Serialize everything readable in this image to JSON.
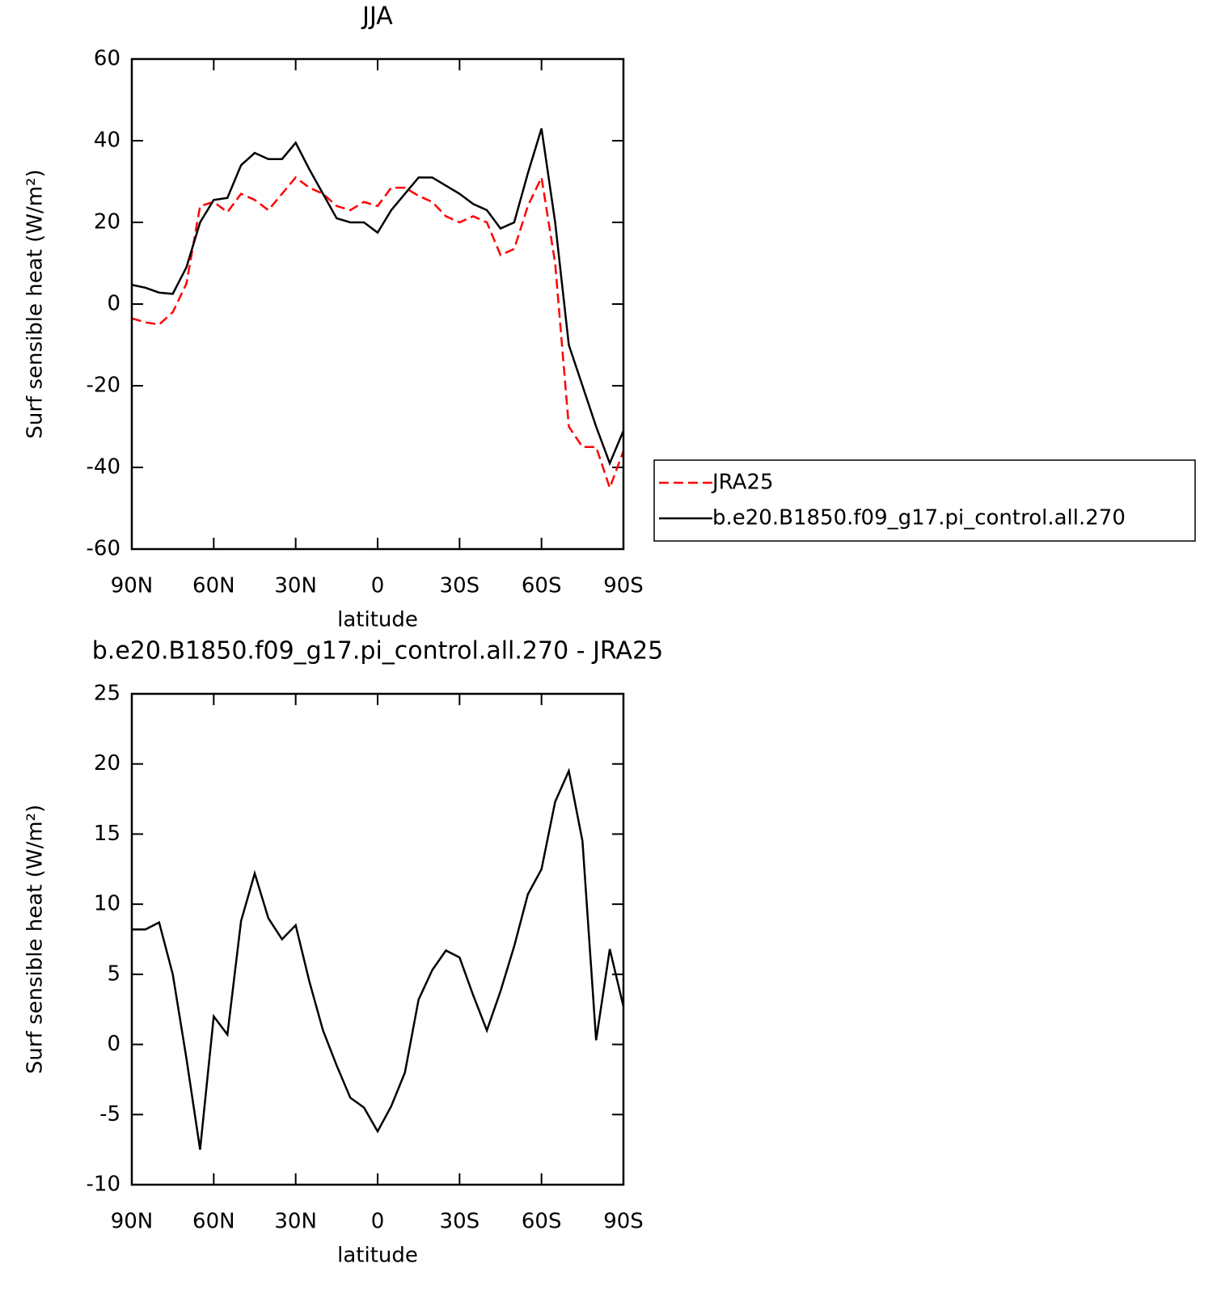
{
  "chart_data": [
    {
      "type": "line",
      "title": "JJA",
      "xlabel": "latitude",
      "ylabel": "Surf sensible heat (W/m²)",
      "x": [
        90,
        85,
        80,
        75,
        70,
        65,
        60,
        55,
        50,
        45,
        40,
        35,
        30,
        25,
        20,
        15,
        10,
        5,
        0,
        -5,
        -10,
        -15,
        -20,
        -25,
        -30,
        -35,
        -40,
        -45,
        -50,
        -55,
        -60,
        -65,
        -70,
        -75,
        -80,
        -85,
        -90
      ],
      "series": [
        {
          "name": "JRA25",
          "color": "#ff0000",
          "dash": true,
          "values": [
            -3.5,
            -4.5,
            -5,
            -2,
            5,
            24,
            25,
            22.5,
            27,
            25.5,
            23,
            27,
            31,
            28.5,
            27,
            24,
            23,
            25,
            24,
            28.5,
            28.5,
            26.5,
            25,
            21.5,
            20,
            21.5,
            20,
            12,
            13.5,
            24,
            31,
            10,
            -30,
            -35,
            -35,
            -45,
            -36
          ]
        },
        {
          "name": "b.e20.B1850.f09_g17.pi_control.all.270",
          "color": "#000000",
          "dash": false,
          "values": [
            4.7,
            4,
            2.8,
            2.5,
            9,
            20,
            25.5,
            26,
            34,
            37,
            35.5,
            35.5,
            39.5,
            33,
            27,
            21,
            20,
            20,
            17.5,
            23,
            27,
            31,
            31,
            29,
            27,
            24.5,
            23,
            18.5,
            20,
            32,
            43,
            20,
            -10,
            -20,
            -30,
            -39,
            -31
          ]
        }
      ],
      "xlim": [
        90,
        -90
      ],
      "xticks": [
        {
          "value": 90,
          "label": "90N"
        },
        {
          "value": 60,
          "label": "60N"
        },
        {
          "value": 30,
          "label": "30N"
        },
        0,
        {
          "value": -30,
          "label": "30S"
        },
        {
          "value": -60,
          "label": "60S"
        },
        {
          "value": -90,
          "label": "90S"
        }
      ],
      "ylim": [
        -60,
        60
      ],
      "yticks": [
        -60,
        -40,
        -20,
        0,
        20,
        40,
        60
      ],
      "legend": "right"
    },
    {
      "type": "line",
      "title": "b.e20.B1850.f09_g17.pi_control.all.270 - JRA25",
      "xlabel": "latitude",
      "ylabel": "Surf sensible heat (W/m²)",
      "x": [
        90,
        85,
        80,
        75,
        70,
        65,
        60,
        55,
        50,
        45,
        40,
        35,
        30,
        25,
        20,
        15,
        10,
        5,
        0,
        -5,
        -10,
        -15,
        -20,
        -25,
        -30,
        -35,
        -40,
        -45,
        -50,
        -55,
        -60,
        -65,
        -70,
        -75,
        -80,
        -85,
        -90
      ],
      "values": [
        8.2,
        8.2,
        8.7,
        5,
        -1,
        -7.5,
        2,
        0.7,
        8.8,
        12.2,
        9,
        7.5,
        8.5,
        4.5,
        1,
        -1.5,
        -3.8,
        -4.5,
        -6.2,
        -4.4,
        -2,
        3.2,
        5.3,
        6.7,
        6.2,
        3.5,
        1,
        3.8,
        7,
        10.7,
        12.5,
        17.3,
        19.5,
        14.5,
        0.3,
        6.8,
        2.7
      ],
      "color": "#000000",
      "xlim": [
        90,
        -90
      ],
      "xticks": [
        {
          "value": 90,
          "label": "90N"
        },
        {
          "value": 60,
          "label": "60N"
        },
        {
          "value": 30,
          "label": "30N"
        },
        0,
        {
          "value": -30,
          "label": "30S"
        },
        {
          "value": -60,
          "label": "60S"
        },
        {
          "value": -90,
          "label": "90S"
        }
      ],
      "ylim": [
        -10,
        25
      ],
      "yticks": [
        -10,
        -5,
        0,
        5,
        10,
        15,
        20,
        25
      ]
    }
  ]
}
